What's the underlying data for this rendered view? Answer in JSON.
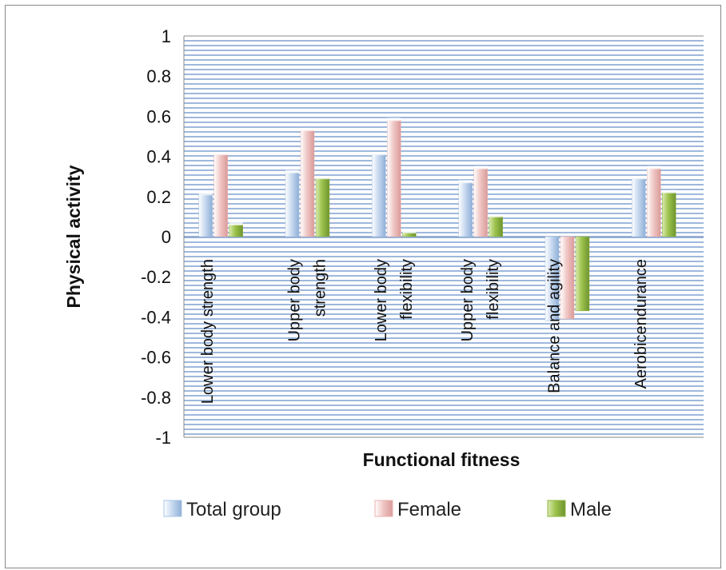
{
  "chart_data": {
    "type": "bar",
    "xlabel": "Functional fitness",
    "ylabel": "Physical activity",
    "ylim": [
      -1,
      1
    ],
    "yticks": [
      "1",
      "0.8",
      "0.6",
      "0.4",
      "0.2",
      "0",
      "-0.2",
      "-0.4",
      "-0.6",
      "-0.8",
      "-1"
    ],
    "grid": true,
    "legend_position": "bottom",
    "categories": [
      [
        "Lower body strength"
      ],
      [
        "Upper body",
        "strength"
      ],
      [
        "Lower body",
        "flexibility"
      ],
      [
        "Upper body",
        "flexibility"
      ],
      [
        "Balance and agility"
      ],
      [
        "Aerobicendurance"
      ]
    ],
    "series": [
      {
        "name": "Total group",
        "color": "#a9c4e4",
        "values": [
          0.21,
          0.32,
          0.41,
          0.27,
          -0.42,
          0.29
        ]
      },
      {
        "name": "Female",
        "color": "#e8b2b0",
        "values": [
          0.41,
          0.53,
          0.58,
          0.34,
          -0.41,
          0.34
        ]
      },
      {
        "name": "Male",
        "color": "#8fb443",
        "values": [
          0.06,
          0.29,
          0.02,
          0.1,
          -0.37,
          0.22
        ]
      }
    ]
  }
}
